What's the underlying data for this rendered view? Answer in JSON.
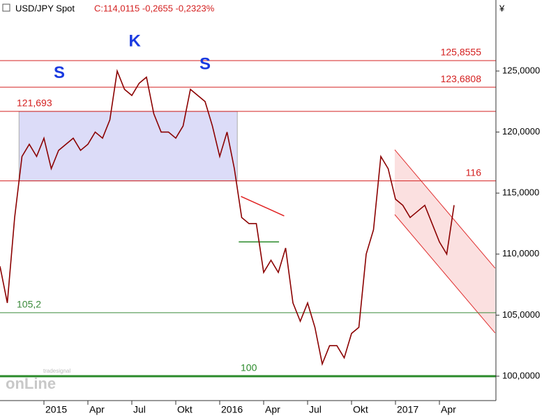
{
  "chart_data": {
    "type": "line",
    "title": "USD/JPY Spot",
    "quote": "C:114,0115 -0,2655 -0,2323%",
    "currency": "¥",
    "watermark": [
      "tradesignal",
      "onLine"
    ],
    "color": "#8b0000",
    "categories": [
      null,
      null,
      null,
      null,
      null,
      null,
      "2015",
      null,
      null,
      null,
      null,
      null,
      "Apr",
      null,
      null,
      null,
      null,
      null,
      "Jul",
      null,
      null,
      null,
      null,
      null,
      "Okt",
      null,
      null,
      null,
      null,
      null,
      "2016",
      null,
      null,
      null,
      null,
      null,
      "Apr",
      null,
      null,
      null,
      null,
      null,
      "Jul",
      null,
      null,
      null,
      null,
      null,
      "Okt",
      null,
      null,
      null,
      null,
      null,
      "2017",
      null,
      null,
      null,
      null,
      null,
      "Apr",
      null,
      null,
      null,
      null,
      null,
      null,
      null
    ],
    "values": [
      109,
      106,
      113,
      118,
      119,
      118,
      119.5,
      117,
      118.5,
      119,
      119.5,
      118.5,
      119,
      120,
      119.5,
      121,
      125,
      123.5,
      123,
      124,
      124.5,
      121.5,
      120,
      120,
      119.5,
      120.5,
      123.5,
      123,
      122.5,
      120.5,
      118,
      120,
      117,
      113,
      112.5,
      112.5,
      108.5,
      109.5,
      108.5,
      110.5,
      106,
      104.5,
      106,
      104,
      101,
      102.5,
      102.5,
      101.5,
      103.5,
      104,
      110,
      112,
      118,
      117,
      114.5,
      114,
      113,
      113.5,
      114,
      112.5,
      111,
      110,
      114.0115,
      null,
      null,
      null,
      null,
      null
    ],
    "ylim": [
      98,
      130.82
    ],
    "yticks": [
      {
        "value": 100,
        "label": "100,0000"
      },
      {
        "value": 105,
        "label": "105,0000"
      },
      {
        "value": 110,
        "label": "110,0000"
      },
      {
        "value": 115,
        "label": "115,0000"
      },
      {
        "value": 120,
        "label": "120,0000"
      },
      {
        "value": 125,
        "label": "125,0000"
      }
    ],
    "levels": [
      {
        "value": 125.8555,
        "label": "125,8555",
        "color": "#d42020",
        "side": "right"
      },
      {
        "value": 123.6808,
        "label": "123,6808",
        "color": "#d42020",
        "side": "right"
      },
      {
        "value": 121.693,
        "label": "121,693",
        "color": "#d42020",
        "side": "left"
      },
      {
        "value": 116,
        "label": "116",
        "color": "#d42020",
        "side": "right"
      },
      {
        "value": 105.2,
        "label": "105,2",
        "color": "#3a8a3a",
        "side": "left"
      },
      {
        "value": 100,
        "label": "100",
        "color": "#2a8a2a",
        "side": "middle"
      }
    ],
    "zone": {
      "x": [
        2.6,
        32.4
      ],
      "color": "#dcdcf8"
    },
    "channel": {
      "color": "#fbe0e0",
      "upper": [
        [
          53.9,
          118.55
        ],
        [
          67.6,
          108.85
        ]
      ],
      "lower": [
        [
          53.9,
          113.24
        ],
        [
          67.6,
          103.54
        ]
      ]
    },
    "trendlines": [
      {
        "color": "#e02020",
        "points": [
          [
            32.9,
            114.73
          ],
          [
            38.8,
            113.13
          ]
        ]
      },
      {
        "color": "#2a8a2a",
        "points": [
          [
            32.6,
            111.0
          ],
          [
            38.1,
            111.0
          ]
        ]
      }
    ],
    "annotations": [
      {
        "text": "S",
        "x": 8.1,
        "y": 124.8
      },
      {
        "text": "K",
        "x": 18.4,
        "y": 127.4
      },
      {
        "text": "S",
        "x": 28,
        "y": 125.5
      }
    ]
  }
}
